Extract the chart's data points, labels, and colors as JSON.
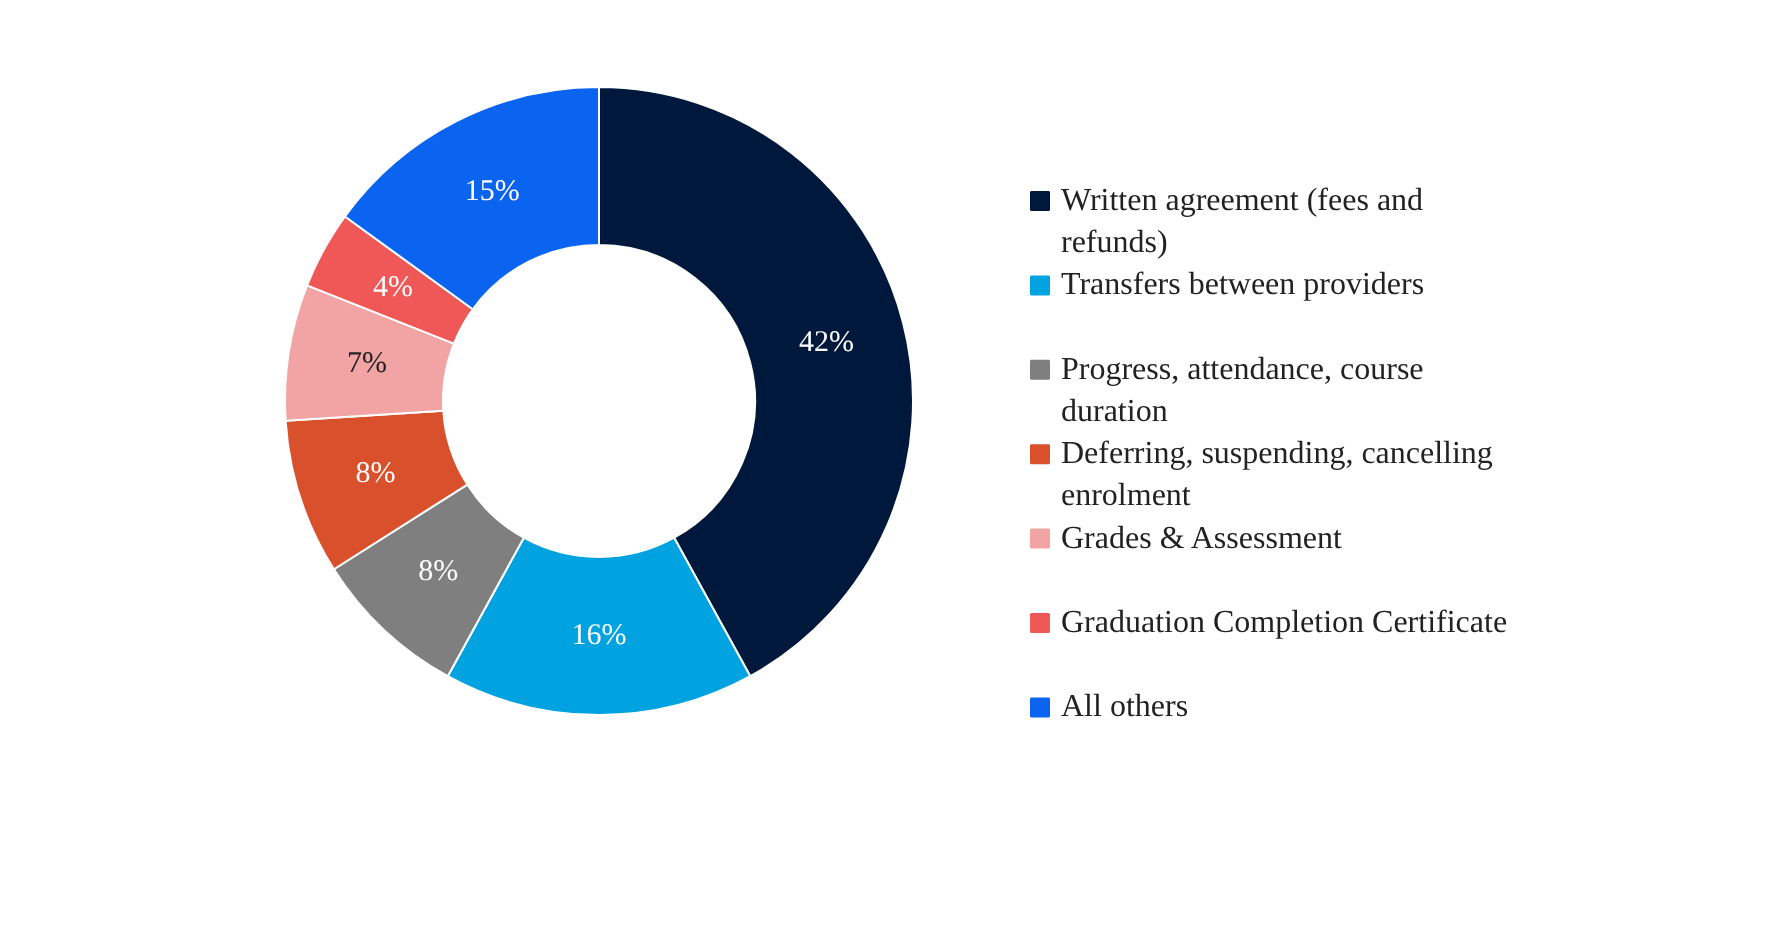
{
  "chart_data": {
    "type": "donut",
    "categories": [
      "Written agreement (fees and refunds)",
      "Transfers between providers",
      "Progress, attendance, course duration",
      "Deferring, suspending, cancelling enrolment",
      "Grades & Assessment",
      "Graduation Completion Certificate",
      "All others"
    ],
    "values": [
      42,
      16,
      8,
      8,
      7,
      4,
      15
    ],
    "colors": [
      "#00183c",
      "#00a3e0",
      "#7f7f7f",
      "#d9512c",
      "#f2a4a4",
      "#f05757",
      "#0a64ef"
    ],
    "value_labels": [
      "42%",
      "16%",
      "8%",
      "8%",
      "7%",
      "4%",
      "15%"
    ],
    "legend": "right"
  }
}
